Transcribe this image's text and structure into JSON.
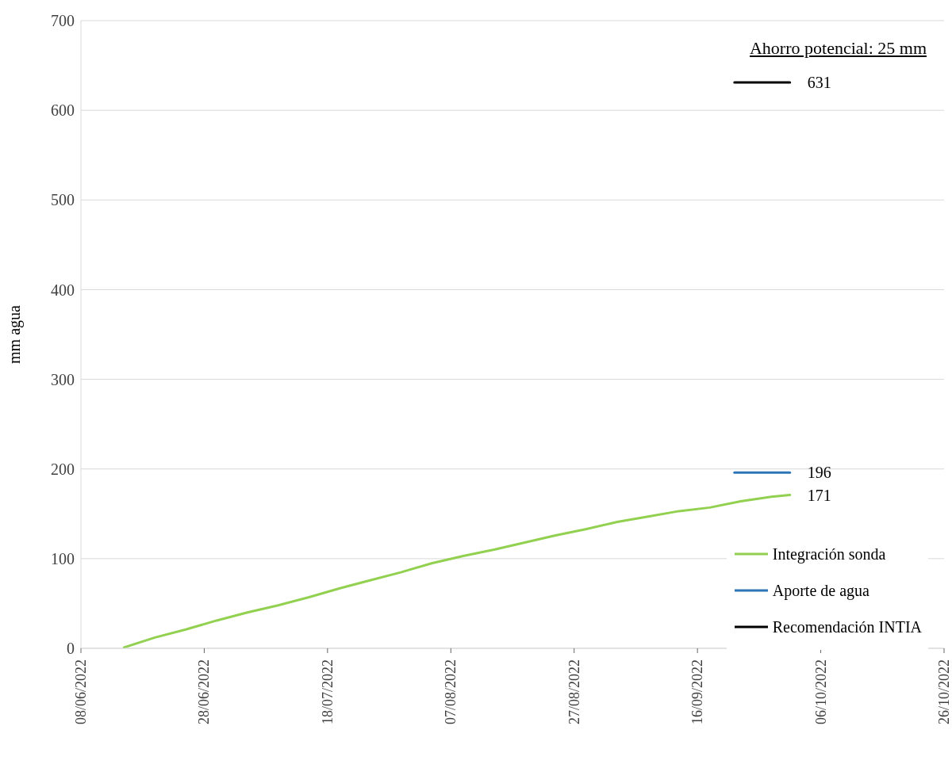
{
  "chart_data": {
    "type": "line",
    "title": "Ahorro potencial: 25 mm",
    "ylabel": "mm agua",
    "xlim": [
      "2022-06-08",
      "2022-10-26"
    ],
    "xticks": [
      {
        "value": "2022-06-08",
        "label": "08/06/2022"
      },
      {
        "value": "2022-06-28",
        "label": "28/06/2022"
      },
      {
        "value": "2022-07-18",
        "label": "18/07/2022"
      },
      {
        "value": "2022-08-07",
        "label": "07/08/2022"
      },
      {
        "value": "2022-08-27",
        "label": "27/08/2022"
      },
      {
        "value": "2022-09-16",
        "label": "16/09/2022"
      },
      {
        "value": "2022-10-06",
        "label": "06/10/2022"
      },
      {
        "value": "2022-10-26",
        "label": "26/10/2022"
      }
    ],
    "ylim": [
      0,
      700
    ],
    "yticks": [
      0,
      100,
      200,
      300,
      400,
      500,
      600,
      700
    ],
    "grid": "y",
    "legend": "bottom right",
    "marker": "none",
    "line_style": "solid",
    "series": [
      {
        "name": "Integración sonda",
        "color": "#92d050",
        "x": [
          "2022-06-15",
          "2022-06-20",
          "2022-06-25",
          "2022-06-30",
          "2022-07-05",
          "2022-07-10",
          "2022-07-15",
          "2022-07-20",
          "2022-07-25",
          "2022-07-30",
          "2022-08-04",
          "2022-08-09",
          "2022-08-14",
          "2022-08-19",
          "2022-08-24",
          "2022-08-29",
          "2022-09-03",
          "2022-09-08",
          "2022-09-13",
          "2022-09-18",
          "2022-09-23",
          "2022-09-28",
          "2022-10-01"
        ],
        "values": [
          1,
          12,
          21,
          31,
          40,
          48,
          57,
          67,
          76,
          85,
          95,
          103,
          110,
          118,
          126,
          133,
          141,
          147,
          153,
          157,
          164,
          169,
          171
        ],
        "value_labels": [
          null,
          null,
          null,
          null,
          null,
          null,
          null,
          null,
          null,
          null,
          null,
          null,
          null,
          null,
          null,
          null,
          null,
          null,
          null,
          null,
          null,
          null,
          "171"
        ]
      },
      {
        "name": "Aporte de agua",
        "color": "#2e75b6",
        "x": [
          "2022-09-22",
          "2022-10-01"
        ],
        "values": [
          196,
          196
        ],
        "value_labels": [
          null,
          "196"
        ]
      },
      {
        "name": "Recomendación INTIA",
        "color": "#000000",
        "x": [
          "2022-09-22",
          "2022-10-01"
        ],
        "values": [
          631,
          631
        ],
        "value_labels": [
          null,
          "631"
        ]
      }
    ]
  }
}
